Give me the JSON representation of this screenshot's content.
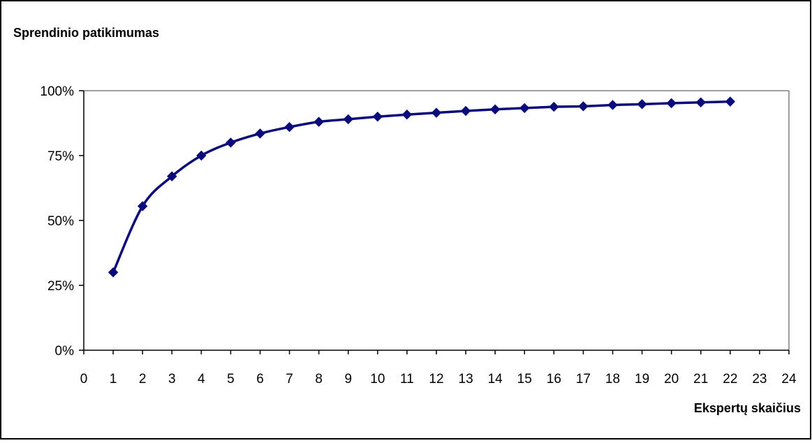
{
  "chart_data": {
    "type": "line",
    "ylabel": "Sprendinio patikimumas",
    "xlabel": "Ekspertų skaičius",
    "xlim": [
      0,
      24
    ],
    "ylim": [
      0,
      1
    ],
    "x_ticks": [
      "0",
      "1",
      "2",
      "3",
      "4",
      "5",
      "6",
      "7",
      "8",
      "9",
      "10",
      "11",
      "12",
      "13",
      "14",
      "15",
      "16",
      "17",
      "18",
      "19",
      "20",
      "21",
      "22",
      "23",
      "24"
    ],
    "y_ticks": [
      "0%",
      "25%",
      "50%",
      "75%",
      "100%"
    ],
    "grid": false,
    "legend": "none",
    "series": [
      {
        "x": [
          1,
          2,
          3,
          4,
          5,
          6,
          7,
          8,
          9,
          10,
          11,
          12,
          13,
          14,
          15,
          16,
          17,
          18,
          19,
          20,
          21,
          22
        ],
        "values": [
          0.3,
          0.555,
          0.67,
          0.75,
          0.8,
          0.835,
          0.86,
          0.88,
          0.89,
          0.9,
          0.908,
          0.915,
          0.922,
          0.928,
          0.933,
          0.938,
          0.94,
          0.945,
          0.948,
          0.952,
          0.955,
          0.958
        ]
      }
    ]
  },
  "colors": {
    "series_line": "#0a0a7a",
    "marker": "#0a0a7a",
    "axis": "#000000",
    "plot_border": "#808080"
  }
}
